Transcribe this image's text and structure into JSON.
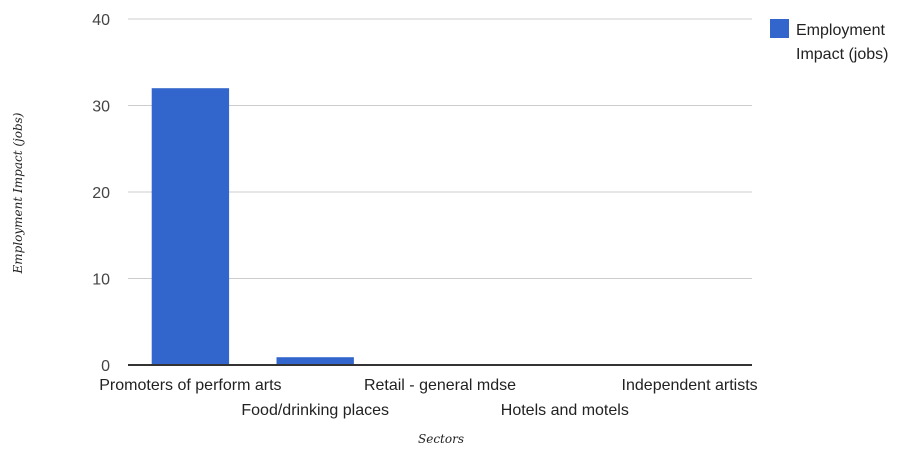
{
  "chart_data": {
    "type": "bar",
    "categories": [
      "Promoters of perform arts",
      "Food/drinking places",
      "Retail - general mdse",
      "Hotels and motels",
      "Independent artists"
    ],
    "series": [
      {
        "name": "Employment Impact (jobs)",
        "values": [
          32,
          0.9,
          0,
          0,
          0
        ]
      }
    ],
    "xlabel": "Sectors",
    "ylabel": "Employment Impact (jobs)",
    "ylim": [
      0,
      40
    ],
    "yticks": [
      "0",
      "10",
      "20",
      "30",
      "40"
    ],
    "grid": true,
    "legend": {
      "position": "right",
      "lines": [
        "Employment",
        "Impact (jobs)"
      ]
    },
    "colors": {
      "bar": "#3366cc",
      "grid": "#cccccc",
      "axis": "#333333"
    }
  }
}
